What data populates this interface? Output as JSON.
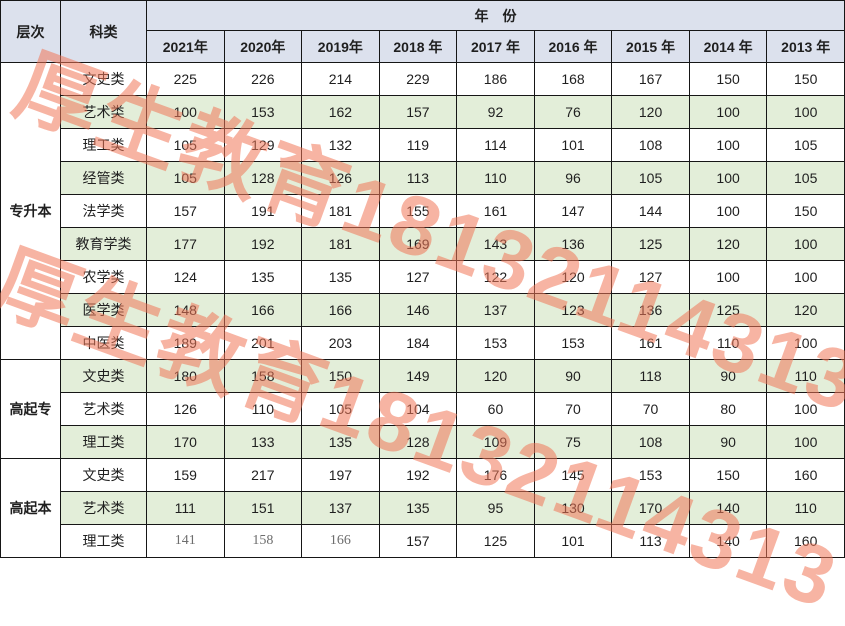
{
  "watermark": {
    "text": "厚生教育18132114313",
    "color_rgba": "rgba(241,118,88,0.55)"
  },
  "colors": {
    "header_bg": "#dce1ed",
    "stripe_bg": "#e3eed9",
    "border": "#161616",
    "muted_text": "#6d6d6d"
  },
  "table": {
    "header": {
      "level_label": "层次",
      "category_label": "科类",
      "year_group_label": "年　份"
    },
    "years": [
      "2021年",
      "2020年",
      "2019年",
      "2018 年",
      "2017 年",
      "2016 年",
      "2015 年",
      "2014 年",
      "2013 年"
    ],
    "sections": [
      {
        "level": "专升本",
        "rows": [
          {
            "category": "文史类",
            "values": [
              225,
              226,
              214,
              229,
              186,
              168,
              167,
              150,
              150
            ]
          },
          {
            "category": "艺术类",
            "values": [
              100,
              153,
              162,
              157,
              92,
              76,
              120,
              100,
              100
            ]
          },
          {
            "category": "理工类",
            "values": [
              105,
              129,
              132,
              119,
              114,
              101,
              108,
              100,
              105
            ]
          },
          {
            "category": "经管类",
            "values": [
              105,
              128,
              126,
              113,
              110,
              96,
              105,
              100,
              105
            ]
          },
          {
            "category": "法学类",
            "values": [
              157,
              191,
              181,
              155,
              161,
              147,
              144,
              100,
              150
            ]
          },
          {
            "category": "教育学类",
            "values": [
              177,
              192,
              181,
              169,
              143,
              136,
              125,
              120,
              100
            ]
          },
          {
            "category": "农学类",
            "values": [
              124,
              135,
              135,
              127,
              122,
              120,
              127,
              100,
              100
            ]
          },
          {
            "category": "医学类",
            "values": [
              148,
              166,
              166,
              146,
              137,
              123,
              136,
              125,
              120
            ]
          },
          {
            "category": "中医类",
            "values": [
              189,
              201,
              203,
              184,
              153,
              153,
              161,
              110,
              100
            ]
          }
        ]
      },
      {
        "level": "高起专",
        "rows": [
          {
            "category": "文史类",
            "values": [
              180,
              158,
              150,
              149,
              120,
              90,
              118,
              90,
              110
            ]
          },
          {
            "category": "艺术类",
            "values": [
              126,
              110,
              105,
              104,
              60,
              70,
              70,
              80,
              100
            ]
          },
          {
            "category": "理工类",
            "values": [
              170,
              133,
              135,
              128,
              109,
              75,
              108,
              90,
              100
            ]
          }
        ]
      },
      {
        "level": "高起本",
        "rows": [
          {
            "category": "文史类",
            "values": [
              159,
              217,
              197,
              192,
              176,
              145,
              153,
              150,
              160
            ]
          },
          {
            "category": "艺术类",
            "values": [
              111,
              151,
              137,
              135,
              95,
              130,
              170,
              140,
              110
            ]
          },
          {
            "category": "理工类",
            "values": [
              141,
              158,
              166,
              157,
              125,
              101,
              113,
              140,
              160
            ],
            "muted_cells": [
              0,
              1,
              2
            ]
          }
        ]
      }
    ]
  }
}
